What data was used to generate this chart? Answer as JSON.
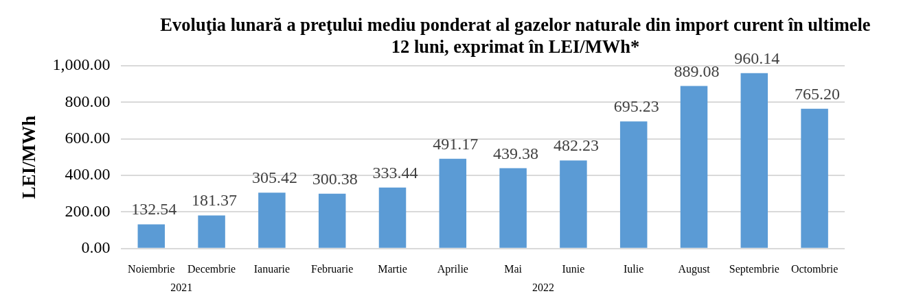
{
  "chart_data": {
    "type": "bar",
    "title": "Evoluţia lunară a preţului mediu ponderat al gazelor naturale din import curent în ultimele 12 luni, exprimat în LEI/MWh*",
    "ylabel": "LEI/MWh",
    "categories": [
      "Noiembrie",
      "Decembrie",
      "Ianuarie",
      "Februarie",
      "Martie",
      "Aprilie",
      "Mai",
      "Iunie",
      "Iulie",
      "August",
      "Septembrie",
      "Octombrie"
    ],
    "values": [
      132.54,
      181.37,
      305.42,
      300.38,
      333.44,
      491.17,
      439.38,
      482.23,
      695.23,
      889.08,
      960.14,
      765.2
    ],
    "value_labels": [
      "132.54",
      "181.37",
      "305.42",
      "300.38",
      "333.44",
      "491.17",
      "439.38",
      "482.23",
      "695.23",
      "889.08",
      "960.14",
      "765.20"
    ],
    "color": "#5b9bd5",
    "ylim": [
      0,
      1000
    ],
    "yticks": [
      {
        "value": 0,
        "label": "0.00"
      },
      {
        "value": 200,
        "label": "200.00"
      },
      {
        "value": 400,
        "label": "400.00"
      },
      {
        "value": 600,
        "label": "600.00"
      },
      {
        "value": 800,
        "label": "800.00"
      },
      {
        "value": 1000,
        "label": "1,000.00"
      }
    ],
    "grid": "y",
    "legend": false,
    "annotations": [
      "2021",
      "2022"
    ]
  }
}
